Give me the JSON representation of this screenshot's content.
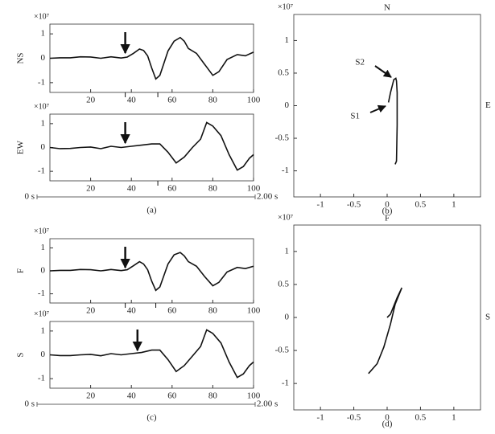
{
  "chart_data": [
    {
      "type": "line",
      "y_label": "NS",
      "multiplier": "×10⁷",
      "x": [
        0,
        5,
        10,
        15,
        20,
        25,
        30,
        35,
        38,
        41,
        44,
        46,
        48,
        50,
        52,
        54,
        56,
        58,
        61,
        64,
        66,
        68,
        72,
        76,
        80,
        83,
        87,
        92,
        96,
        100
      ],
      "values": [
        0,
        0.02,
        0.02,
        0.06,
        0.05,
        0,
        0.06,
        0.01,
        0.05,
        0.2,
        0.38,
        0.32,
        0.1,
        -0.4,
        -0.85,
        -0.7,
        -0.2,
        0.3,
        0.7,
        0.85,
        0.7,
        0.4,
        0.2,
        -0.25,
        -0.7,
        -0.55,
        -0.05,
        0.15,
        0.1,
        0.25
      ],
      "xlim": [
        0,
        100
      ],
      "ylim": [
        -1.4,
        1.4
      ],
      "xticks": [
        20,
        40,
        60,
        80,
        100
      ],
      "yticks": [
        -1,
        0,
        1
      ],
      "arrow_x": 37,
      "event_ticks": [
        37,
        53
      ],
      "color": "#111"
    },
    {
      "type": "line",
      "y_label": "EW",
      "multiplier": "×10⁷",
      "x": [
        0,
        5,
        10,
        15,
        20,
        25,
        30,
        35,
        40,
        45,
        50,
        54,
        58,
        62,
        66,
        70,
        74,
        77,
        80,
        84,
        88,
        92,
        95,
        98,
        100
      ],
      "values": [
        0,
        -0.05,
        -0.04,
        0,
        0.02,
        -0.05,
        0.05,
        0,
        0.05,
        0.1,
        0.15,
        0.15,
        -0.2,
        -0.65,
        -0.4,
        0,
        0.35,
        1.05,
        0.9,
        0.5,
        -0.3,
        -0.95,
        -0.8,
        -0.45,
        -0.3
      ],
      "xlim": [
        0,
        100
      ],
      "ylim": [
        -1.4,
        1.4
      ],
      "xticks": [
        20,
        40,
        60,
        80,
        100
      ],
      "yticks": [
        -1,
        0,
        1
      ],
      "arrow_x": 37,
      "event_ticks": [
        53
      ],
      "color": "#111",
      "time_axis": {
        "start": "0 s",
        "end": "2.00 s"
      },
      "caption": "(a)"
    },
    {
      "type": "hodogram",
      "multiplier": "×10⁷",
      "top_label": "N",
      "right_label": "E",
      "x": [
        0.12,
        0.14,
        0.15,
        0.15,
        0.14,
        0.13,
        0.1,
        0.05,
        0.02
      ],
      "values": [
        -0.9,
        -0.85,
        -0.3,
        0.2,
        0.38,
        0.42,
        0.4,
        0.2,
        0.05
      ],
      "xlim": [
        -1.4,
        1.4
      ],
      "ylim": [
        -1.4,
        1.4
      ],
      "xticks": [
        -1,
        -0.5,
        0,
        0.5,
        1
      ],
      "yticks": [
        -1,
        -0.5,
        0,
        0.5,
        1
      ],
      "annotations": [
        "S2",
        "S1"
      ],
      "caption": "(b)",
      "color": "#111"
    },
    {
      "type": "line",
      "y_label": "F",
      "multiplier": "×10⁷",
      "x": [
        0,
        5,
        10,
        15,
        20,
        25,
        30,
        35,
        38,
        41,
        44,
        46,
        48,
        50,
        52,
        54,
        56,
        58,
        61,
        64,
        66,
        68,
        72,
        76,
        80,
        83,
        87,
        92,
        96,
        100
      ],
      "values": [
        0,
        0.02,
        0.02,
        0.06,
        0.05,
        0,
        0.06,
        0.01,
        0.05,
        0.22,
        0.4,
        0.3,
        0.05,
        -0.45,
        -0.85,
        -0.7,
        -0.2,
        0.3,
        0.7,
        0.8,
        0.65,
        0.4,
        0.2,
        -0.25,
        -0.65,
        -0.5,
        -0.05,
        0.15,
        0.1,
        0.2
      ],
      "xlim": [
        0,
        100
      ],
      "ylim": [
        -1.4,
        1.4
      ],
      "xticks": [
        20,
        40,
        60,
        80,
        100
      ],
      "yticks": [
        -1,
        0,
        1
      ],
      "arrow_x": 37,
      "event_ticks": [
        37,
        52
      ],
      "color": "#111"
    },
    {
      "type": "line",
      "y_label": "S",
      "multiplier": "×10⁷",
      "x": [
        0,
        5,
        10,
        15,
        20,
        25,
        30,
        35,
        40,
        45,
        50,
        54,
        58,
        62,
        66,
        70,
        74,
        77,
        80,
        84,
        88,
        92,
        95,
        98,
        100
      ],
      "values": [
        0,
        -0.03,
        -0.03,
        0,
        0.02,
        -0.04,
        0.05,
        0,
        0.05,
        0.1,
        0.2,
        0.2,
        -0.2,
        -0.7,
        -0.45,
        -0.05,
        0.35,
        1.05,
        0.9,
        0.5,
        -0.3,
        -0.95,
        -0.8,
        -0.45,
        -0.3
      ],
      "xlim": [
        0,
        100
      ],
      "ylim": [
        -1.4,
        1.4
      ],
      "xticks": [
        20,
        40,
        60,
        80,
        100
      ],
      "yticks": [
        -1,
        0,
        1
      ],
      "arrow_x": 43,
      "event_ticks": [],
      "color": "#111",
      "time_axis": {
        "start": "0 s",
        "end": "2.00 s"
      },
      "caption": "(c)"
    },
    {
      "type": "hodogram",
      "multiplier": "×10⁷",
      "top_label": "F",
      "right_label": "S",
      "x": [
        -0.28,
        -0.15,
        -0.05,
        0.05,
        0.12,
        0.2,
        0.22,
        0.15,
        0.05,
        0
      ],
      "values": [
        -0.85,
        -0.7,
        -0.45,
        -0.1,
        0.2,
        0.4,
        0.45,
        0.3,
        0.05,
        0
      ],
      "xlim": [
        -1.4,
        1.4
      ],
      "ylim": [
        -1.4,
        1.4
      ],
      "xticks": [
        -1,
        -0.5,
        0,
        0.5,
        1
      ],
      "yticks": [
        -1,
        -0.5,
        0,
        0.5,
        1
      ],
      "caption": "(d)",
      "color": "#111"
    }
  ]
}
